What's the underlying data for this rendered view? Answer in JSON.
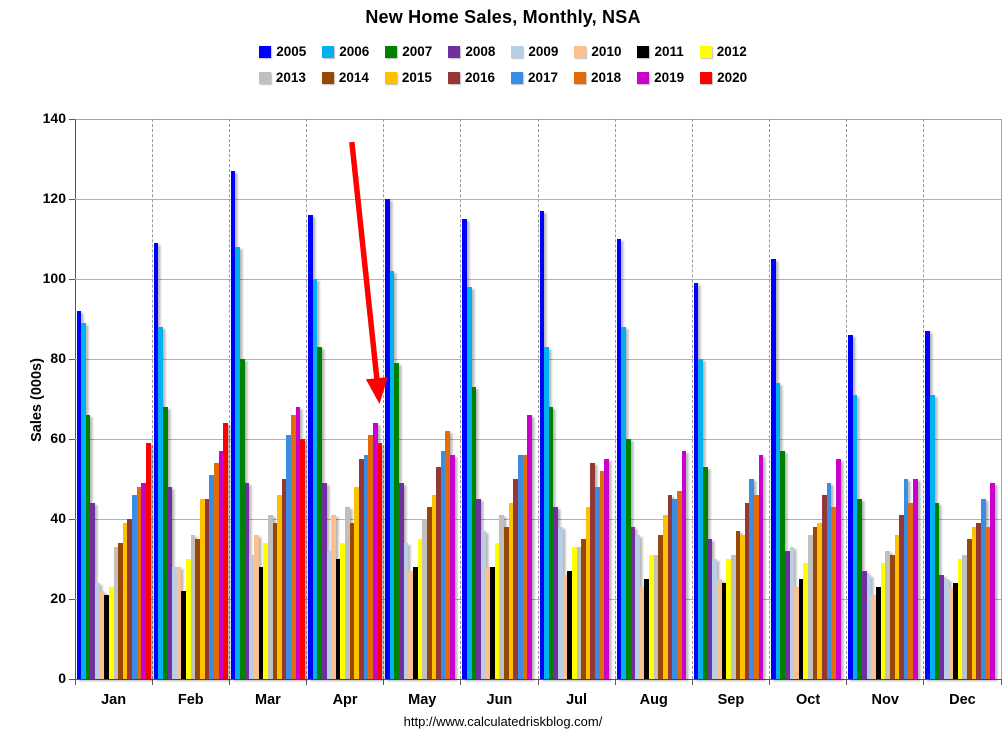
{
  "title": "New Home Sales, Monthly, NSA",
  "footer": {
    "url": "http://www.calculatedriskblog.com/"
  },
  "chart_data": {
    "type": "bar",
    "title": "New Home Sales, Monthly, NSA",
    "xlabel": "",
    "ylabel": "Sales (000s)",
    "ylim": [
      0,
      140
    ],
    "yticks": [
      0,
      20,
      40,
      60,
      80,
      100,
      120,
      140
    ],
    "grid": "horizontal solid gridlines every 20; dashed vertical month separators",
    "legend_position": "top, two rows of 8",
    "categories": [
      "Jan",
      "Feb",
      "Mar",
      "Apr",
      "May",
      "Jun",
      "Jul",
      "Aug",
      "Sep",
      "Oct",
      "Nov",
      "Dec"
    ],
    "series": [
      {
        "name": "2005",
        "color": "#0000FF",
        "values": [
          92,
          109,
          127,
          116,
          120,
          115,
          117,
          110,
          99,
          105,
          86,
          87
        ]
      },
      {
        "name": "2006",
        "color": "#00B0F0",
        "values": [
          89,
          88,
          108,
          100,
          102,
          98,
          83,
          88,
          80,
          74,
          71,
          71
        ]
      },
      {
        "name": "2007",
        "color": "#008000",
        "values": [
          66,
          68,
          80,
          83,
          79,
          73,
          68,
          60,
          53,
          57,
          45,
          44
        ]
      },
      {
        "name": "2008",
        "color": "#7030A0",
        "values": [
          44,
          48,
          49,
          49,
          49,
          45,
          43,
          38,
          35,
          32,
          27,
          26
        ]
      },
      {
        "name": "2009",
        "color": "#B9CDE5",
        "values": [
          24,
          28,
          31,
          32,
          34,
          37,
          38,
          36,
          30,
          33,
          26,
          25
        ]
      },
      {
        "name": "2010",
        "color": "#FAC090",
        "values": [
          22,
          28,
          36,
          41,
          27,
          28,
          26,
          23,
          25,
          23,
          21,
          23
        ]
      },
      {
        "name": "2011",
        "color": "#000000",
        "values": [
          21,
          22,
          28,
          30,
          28,
          28,
          27,
          25,
          24,
          25,
          23,
          24
        ]
      },
      {
        "name": "2012",
        "color": "#FFFF00",
        "values": [
          23,
          30,
          34,
          34,
          35,
          34,
          33,
          31,
          30,
          29,
          29,
          30
        ]
      },
      {
        "name": "2013",
        "color": "#C0C0C0",
        "values": [
          33,
          36,
          41,
          43,
          40,
          41,
          33,
          31,
          31,
          36,
          32,
          31
        ]
      },
      {
        "name": "2014",
        "color": "#974807",
        "values": [
          34,
          35,
          39,
          39,
          43,
          38,
          35,
          36,
          37,
          38,
          31,
          35
        ]
      },
      {
        "name": "2015",
        "color": "#FFC000",
        "values": [
          39,
          45,
          46,
          48,
          46,
          44,
          43,
          41,
          36,
          39,
          36,
          38
        ]
      },
      {
        "name": "2016",
        "color": "#953735",
        "values": [
          40,
          45,
          50,
          55,
          53,
          50,
          54,
          46,
          44,
          46,
          41,
          39
        ]
      },
      {
        "name": "2017",
        "color": "#3A8DE3",
        "values": [
          46,
          51,
          61,
          56,
          57,
          56,
          48,
          45,
          50,
          49,
          50,
          45
        ]
      },
      {
        "name": "2018",
        "color": "#E26B0A",
        "values": [
          48,
          54,
          66,
          61,
          62,
          56,
          52,
          47,
          46,
          43,
          44,
          38
        ]
      },
      {
        "name": "2019",
        "color": "#CC00CC",
        "values": [
          49,
          57,
          68,
          64,
          56,
          66,
          55,
          57,
          56,
          55,
          50,
          49
        ]
      },
      {
        "name": "2020",
        "color": "#FF0000",
        "values": [
          59,
          64,
          60,
          59,
          null,
          null,
          null,
          null,
          null,
          null,
          null,
          null
        ]
      }
    ],
    "annotation": {
      "shape": "arrow",
      "color": "#FF0000",
      "target_series": "2020",
      "target_month": "Apr"
    }
  }
}
